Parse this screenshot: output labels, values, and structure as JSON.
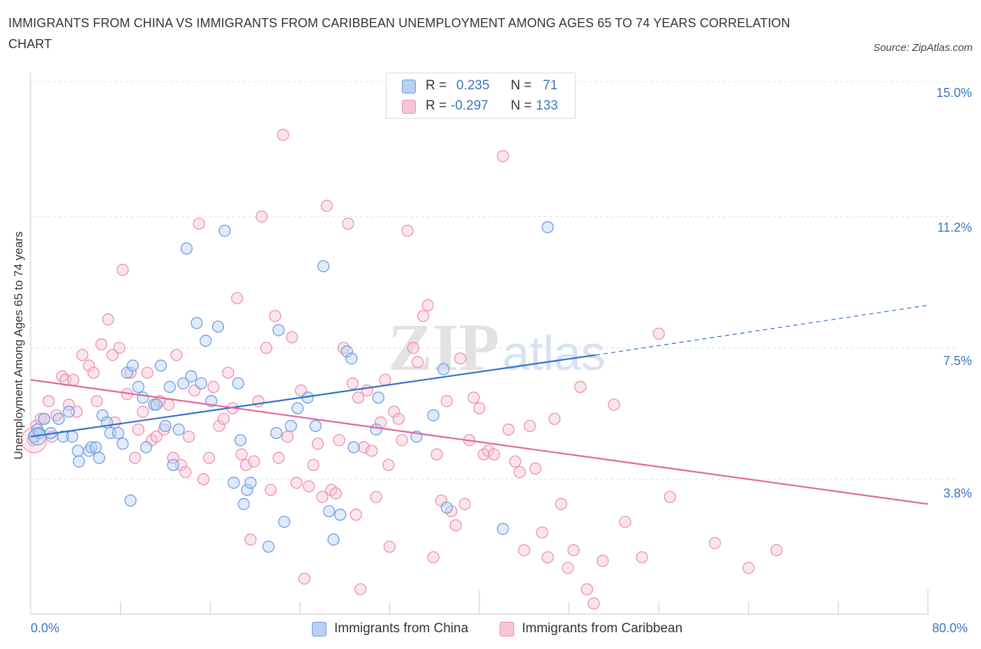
{
  "title": "IMMIGRANTS FROM CHINA VS IMMIGRANTS FROM CARIBBEAN UNEMPLOYMENT AMONG AGES 65 TO 74 YEARS CORRELATION CHART",
  "source": "Source: ZipAtlas.com",
  "watermark": {
    "zip": "ZIP",
    "atlas": "atlas"
  },
  "legend": {
    "rows": [
      {
        "r_label": "R =",
        "r_value": "0.235",
        "n_label": "N =",
        "n_value": "71"
      },
      {
        "r_label": "R =",
        "r_value": "-0.297",
        "n_label": "N =",
        "n_value": "133"
      }
    ]
  },
  "colors": {
    "china": "#6f9ee0",
    "china_fill": "#b7d0f3",
    "caribbean": "#ef8fae",
    "caribbean_fill": "#f7c6d6",
    "china_line": "#2f6fcb",
    "caribbean_line": "#e0669a",
    "accent_text": "#3a74c4"
  },
  "chart_data": {
    "type": "scatter",
    "title": "IMMIGRANTS FROM CHINA VS IMMIGRANTS FROM CARIBBEAN UNEMPLOYMENT AMONG AGES 65 TO 74 YEARS CORRELATION CHART",
    "xlabel": "",
    "ylabel": "Unemployment Among Ages 65 to 74 years",
    "xlim": [
      0,
      80
    ],
    "ylim": [
      0,
      15
    ],
    "x_tick_labels": [
      "0.0%",
      "80.0%"
    ],
    "y_ticks": [
      3.8,
      7.5,
      11.2,
      15.0
    ],
    "y_tick_labels": [
      "3.8%",
      "7.5%",
      "11.2%",
      "15.0%"
    ],
    "grid": true,
    "legend_position": "top-center",
    "series": [
      {
        "name": "Immigrants from China",
        "r": 0.235,
        "n": 71,
        "trend": {
          "x0": 0,
          "y0": 5.0,
          "x1": 50.4,
          "y1": 7.3,
          "dashed_to_x": 80,
          "dashed_to_y": 8.7
        },
        "points": [
          [
            0.3,
            5.0
          ],
          [
            0.6,
            5.2
          ],
          [
            0.8,
            5.1
          ],
          [
            1.2,
            5.5
          ],
          [
            1.8,
            5.1
          ],
          [
            2.5,
            5.5
          ],
          [
            2.9,
            5.0
          ],
          [
            3.4,
            5.7
          ],
          [
            3.7,
            5.0
          ],
          [
            4.2,
            4.6
          ],
          [
            4.3,
            4.3
          ],
          [
            5.2,
            4.6
          ],
          [
            5.4,
            4.7
          ],
          [
            5.8,
            4.7
          ],
          [
            6.1,
            4.4
          ],
          [
            6.4,
            5.6
          ],
          [
            6.8,
            5.4
          ],
          [
            7.1,
            5.1
          ],
          [
            7.8,
            5.1
          ],
          [
            8.2,
            4.8
          ],
          [
            8.6,
            6.8
          ],
          [
            8.9,
            3.2
          ],
          [
            9.1,
            7.0
          ],
          [
            9.6,
            6.4
          ],
          [
            10.0,
            6.1
          ],
          [
            10.3,
            4.7
          ],
          [
            11.0,
            5.9
          ],
          [
            11.2,
            5.9
          ],
          [
            11.6,
            7.0
          ],
          [
            12.0,
            5.3
          ],
          [
            12.4,
            6.4
          ],
          [
            12.7,
            4.2
          ],
          [
            13.2,
            5.2
          ],
          [
            13.6,
            6.5
          ],
          [
            13.9,
            10.3
          ],
          [
            14.3,
            6.7
          ],
          [
            14.8,
            8.2
          ],
          [
            15.2,
            6.5
          ],
          [
            15.6,
            7.7
          ],
          [
            16.1,
            6.0
          ],
          [
            16.7,
            8.1
          ],
          [
            17.3,
            10.8
          ],
          [
            18.1,
            3.7
          ],
          [
            18.5,
            6.5
          ],
          [
            18.7,
            4.9
          ],
          [
            19.0,
            3.1
          ],
          [
            19.3,
            3.5
          ],
          [
            19.6,
            3.7
          ],
          [
            21.2,
            1.9
          ],
          [
            21.9,
            5.1
          ],
          [
            22.1,
            8.0
          ],
          [
            22.6,
            2.6
          ],
          [
            23.2,
            5.3
          ],
          [
            23.8,
            5.8
          ],
          [
            24.7,
            6.1
          ],
          [
            25.4,
            5.3
          ],
          [
            26.1,
            9.8
          ],
          [
            26.6,
            2.9
          ],
          [
            27.0,
            2.1
          ],
          [
            27.6,
            2.8
          ],
          [
            28.2,
            7.4
          ],
          [
            28.6,
            7.2
          ],
          [
            28.8,
            4.7
          ],
          [
            30.8,
            5.2
          ],
          [
            31.0,
            6.1
          ],
          [
            35.9,
            5.6
          ],
          [
            36.8,
            6.9
          ],
          [
            37.1,
            3.0
          ],
          [
            42.1,
            2.4
          ],
          [
            46.1,
            10.9
          ],
          [
            34.4,
            5.0
          ]
        ]
      },
      {
        "name": "Immigrants from Caribbean",
        "r": -0.297,
        "n": 133,
        "trend": {
          "x0": 0,
          "y0": 6.6,
          "x1": 80,
          "y1": 3.1
        },
        "points": [
          [
            0.2,
            4.9
          ],
          [
            0.5,
            5.3
          ],
          [
            0.9,
            5.5
          ],
          [
            1.2,
            5.5
          ],
          [
            1.6,
            6.0
          ],
          [
            1.9,
            5.0
          ],
          [
            2.3,
            5.6
          ],
          [
            2.8,
            6.7
          ],
          [
            3.1,
            6.6
          ],
          [
            3.4,
            5.9
          ],
          [
            3.8,
            6.6
          ],
          [
            4.1,
            5.7
          ],
          [
            4.6,
            7.3
          ],
          [
            5.2,
            7.0
          ],
          [
            5.6,
            6.8
          ],
          [
            5.9,
            6.0
          ],
          [
            6.3,
            7.6
          ],
          [
            6.9,
            8.3
          ],
          [
            7.3,
            7.3
          ],
          [
            7.5,
            5.4
          ],
          [
            7.9,
            7.5
          ],
          [
            8.2,
            9.7
          ],
          [
            8.6,
            6.2
          ],
          [
            8.9,
            6.8
          ],
          [
            9.3,
            4.4
          ],
          [
            9.6,
            5.2
          ],
          [
            10.0,
            5.7
          ],
          [
            10.4,
            6.8
          ],
          [
            10.8,
            4.9
          ],
          [
            11.2,
            5.0
          ],
          [
            11.5,
            6.0
          ],
          [
            11.9,
            5.2
          ],
          [
            12.3,
            5.9
          ],
          [
            12.7,
            4.4
          ],
          [
            13.0,
            7.3
          ],
          [
            13.4,
            4.2
          ],
          [
            13.8,
            4.0
          ],
          [
            14.1,
            5.0
          ],
          [
            14.6,
            6.3
          ],
          [
            15.0,
            11.0
          ],
          [
            15.4,
            3.8
          ],
          [
            15.9,
            4.4
          ],
          [
            16.3,
            6.4
          ],
          [
            16.8,
            5.3
          ],
          [
            17.2,
            5.5
          ],
          [
            17.6,
            6.8
          ],
          [
            18.0,
            5.8
          ],
          [
            18.4,
            8.9
          ],
          [
            18.8,
            4.5
          ],
          [
            19.2,
            4.2
          ],
          [
            19.6,
            2.1
          ],
          [
            19.9,
            4.3
          ],
          [
            20.3,
            6.0
          ],
          [
            20.6,
            11.2
          ],
          [
            21.0,
            7.5
          ],
          [
            21.4,
            3.5
          ],
          [
            21.8,
            8.4
          ],
          [
            22.1,
            4.4
          ],
          [
            22.5,
            13.5
          ],
          [
            22.9,
            5.0
          ],
          [
            23.3,
            7.8
          ],
          [
            23.7,
            3.7
          ],
          [
            24.1,
            6.3
          ],
          [
            24.4,
            1.0
          ],
          [
            24.8,
            3.6
          ],
          [
            25.2,
            4.2
          ],
          [
            25.6,
            4.8
          ],
          [
            26.0,
            3.3
          ],
          [
            26.4,
            11.5
          ],
          [
            26.8,
            3.5
          ],
          [
            27.2,
            3.4
          ],
          [
            27.5,
            4.9
          ],
          [
            27.9,
            7.5
          ],
          [
            28.3,
            11.0
          ],
          [
            28.7,
            6.5
          ],
          [
            29.0,
            2.8
          ],
          [
            29.4,
            0.7
          ],
          [
            29.7,
            4.7
          ],
          [
            30.0,
            6.3
          ],
          [
            30.4,
            4.6
          ],
          [
            30.8,
            3.3
          ],
          [
            31.2,
            5.4
          ],
          [
            31.6,
            6.6
          ],
          [
            32.0,
            1.9
          ],
          [
            32.4,
            5.7
          ],
          [
            32.8,
            5.5
          ],
          [
            33.1,
            4.9
          ],
          [
            33.6,
            10.8
          ],
          [
            34.1,
            7.5
          ],
          [
            34.5,
            7.1
          ],
          [
            35.0,
            8.4
          ],
          [
            35.4,
            8.7
          ],
          [
            35.9,
            1.6
          ],
          [
            36.2,
            4.5
          ],
          [
            36.6,
            3.2
          ],
          [
            37.1,
            6.0
          ],
          [
            37.5,
            2.9
          ],
          [
            37.9,
            2.5
          ],
          [
            38.3,
            7.2
          ],
          [
            38.7,
            3.1
          ],
          [
            39.1,
            4.9
          ],
          [
            39.5,
            6.1
          ],
          [
            40.0,
            5.8
          ],
          [
            40.4,
            4.5
          ],
          [
            40.8,
            4.6
          ],
          [
            41.3,
            4.5
          ],
          [
            42.1,
            12.9
          ],
          [
            42.6,
            5.2
          ],
          [
            43.2,
            4.3
          ],
          [
            43.6,
            4.0
          ],
          [
            44.0,
            1.8
          ],
          [
            44.5,
            5.3
          ],
          [
            45.0,
            4.1
          ],
          [
            45.6,
            2.3
          ],
          [
            46.1,
            1.6
          ],
          [
            46.7,
            5.5
          ],
          [
            47.3,
            3.1
          ],
          [
            47.9,
            1.3
          ],
          [
            48.4,
            1.8
          ],
          [
            49.0,
            6.4
          ],
          [
            49.6,
            0.7
          ],
          [
            50.2,
            0.3
          ],
          [
            51.0,
            1.5
          ],
          [
            52.0,
            5.9
          ],
          [
            53.0,
            2.6
          ],
          [
            54.5,
            1.6
          ],
          [
            56.0,
            7.9
          ],
          [
            57.0,
            3.3
          ],
          [
            61.0,
            2.0
          ],
          [
            64.0,
            1.3
          ],
          [
            66.5,
            1.8
          ],
          [
            29.2,
            6.1
          ],
          [
            31.9,
            4.2
          ]
        ]
      }
    ]
  },
  "x_axis": {
    "left_label": "0.0%",
    "right_label": "80.0%"
  },
  "y_axis": {
    "title": "Unemployment Among Ages 65 to 74 years",
    "tick_labels": [
      "15.0%",
      "11.2%",
      "7.5%",
      "3.8%"
    ]
  },
  "bottom_legend": [
    {
      "label": "Immigrants from China"
    },
    {
      "label": "Immigrants from Caribbean"
    }
  ]
}
